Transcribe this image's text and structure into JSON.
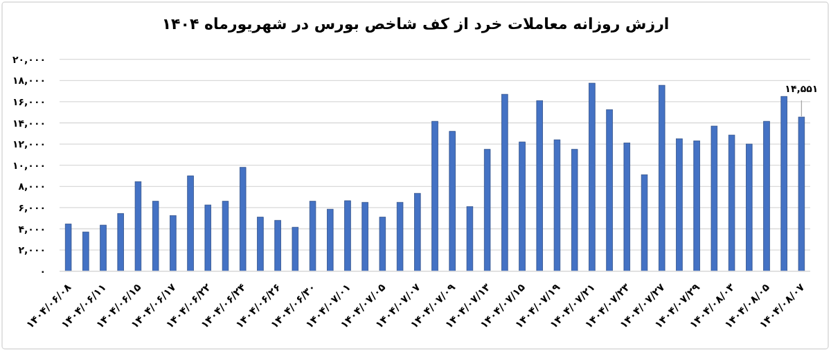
{
  "chart_data": {
    "type": "bar",
    "title": "ارزش روزانه معاملات خرد از کف شاخص بورس در شهریورماه ۱۴۰۴",
    "categories": [
      "۱۴۰۴/۰۶/۰۸",
      null,
      "۱۴۰۴/۰۶/۱۱",
      null,
      "۱۴۰۴/۰۶/۱۵",
      null,
      "۱۴۰۴/۰۶/۱۷",
      null,
      "۱۴۰۴/۰۶/۲۲",
      null,
      "۱۴۰۴/۰۶/۲۴",
      null,
      "۱۴۰۴/۰۶/۲۶",
      null,
      "۱۴۰۴/۰۶/۳۰",
      null,
      "۱۴۰۴/۰۷/۰۱",
      null,
      "۱۴۰۴/۰۷/۰۵",
      null,
      "۱۴۰۴/۰۷/۰۷",
      null,
      "۱۴۰۴/۰۷/۰۹",
      null,
      "۱۴۰۴/۰۷/۱۳",
      null,
      "۱۴۰۴/۰۷/۱۵",
      null,
      "۱۴۰۴/۰۷/۱۹",
      null,
      "۱۴۰۴/۰۷/۲۱",
      null,
      "۱۴۰۴/۰۷/۲۳",
      null,
      "۱۴۰۴/۰۷/۲۷",
      null,
      "۱۴۰۴/۰۷/۲۹",
      null,
      "۱۴۰۴/۰۸/۰۳",
      null,
      "۱۴۰۴/۰۸/۰۵",
      null,
      "۱۴۰۴/۰۸/۰۷"
    ],
    "values": [
      4450,
      3700,
      4350,
      5450,
      8450,
      6600,
      5250,
      9000,
      6250,
      6600,
      9800,
      5100,
      4800,
      4150,
      6600,
      5850,
      6650,
      6500,
      5100,
      6500,
      7350,
      14150,
      13200,
      6100,
      11500,
      16700,
      12200,
      16100,
      12400,
      11500,
      17750,
      15250,
      12100,
      9100,
      17550,
      12500,
      12300,
      13700,
      12850,
      12000,
      14150,
      16500,
      14551
    ],
    "value_labels": [
      null,
      null,
      null,
      null,
      null,
      null,
      null,
      null,
      null,
      null,
      null,
      null,
      null,
      null,
      null,
      null,
      null,
      null,
      null,
      null,
      null,
      null,
      null,
      null,
      null,
      null,
      null,
      null,
      null,
      null,
      null,
      null,
      null,
      null,
      null,
      null,
      null,
      null,
      null,
      null,
      null,
      null,
      "۱۴,۵۵۱"
    ],
    "color": "#4472c4",
    "ylim": [
      0,
      20000
    ],
    "yticks": [
      {
        "value": 0,
        "label": "۰"
      },
      {
        "value": 2000,
        "label": "۲,۰۰۰"
      },
      {
        "value": 4000,
        "label": "۴,۰۰۰"
      },
      {
        "value": 6000,
        "label": "۶,۰۰۰"
      },
      {
        "value": 8000,
        "label": "۸,۰۰۰"
      },
      {
        "value": 10000,
        "label": "۱۰,۰۰۰"
      },
      {
        "value": 12000,
        "label": "۱۲,۰۰۰"
      },
      {
        "value": 14000,
        "label": "۱۴,۰۰۰"
      },
      {
        "value": 16000,
        "label": "۱۶,۰۰۰"
      },
      {
        "value": 18000,
        "label": "۱۸,۰۰۰"
      },
      {
        "value": 20000,
        "label": "۲۰,۰۰۰"
      }
    ],
    "grid": "y"
  }
}
